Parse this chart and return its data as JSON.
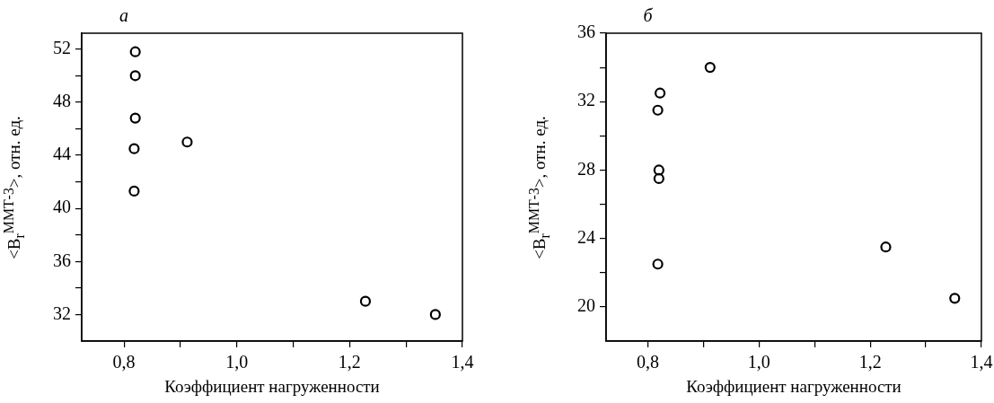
{
  "chart_data": [
    {
      "type": "scatter",
      "title": "а",
      "xlabel": "Коэффициент нагруженности",
      "ylabel": "<B$_{r}$$^{ММТ-3}$>, отн. ед.",
      "series": [
        {
          "color": "#000000",
          "x": [
            0.82,
            0.82,
            0.82,
            0.818,
            0.818,
            0.912,
            1.228,
            1.352
          ],
          "values": [
            51.8,
            50,
            46.8,
            44.5,
            41.3,
            45,
            33,
            32
          ]
        }
      ],
      "xlim": [
        0.725,
        1.4
      ],
      "ylim": [
        30,
        53.2
      ],
      "xticks": [
        {
          "value": 0.8,
          "label": "0,8"
        },
        {
          "value": 0.9,
          "label": null
        },
        {
          "value": 1.0,
          "label": "1,0"
        },
        {
          "value": 1.1,
          "label": null
        },
        {
          "value": 1.2,
          "label": "1,2"
        },
        {
          "value": 1.3,
          "label": null
        },
        {
          "value": 1.4,
          "label": "1,4"
        }
      ],
      "yticks": [
        32,
        {
          "value": 34,
          "label": null
        },
        36,
        {
          "value": 38,
          "label": null
        },
        40,
        {
          "value": 42,
          "label": null
        },
        44,
        {
          "value": 46,
          "label": null
        },
        48,
        {
          "value": 50,
          "label": null
        },
        52
      ],
      "grid": false,
      "legend": false,
      "marker": "circle"
    },
    {
      "type": "scatter",
      "title": "б",
      "xlabel": "Коэффициент нагруженности",
      "ylabel": "<B$_{r}$$^{ММТ-3}$>, отн. ед.",
      "series": [
        {
          "color": "#000000",
          "x": [
            0.818,
            0.82,
            0.82,
            0.818,
            0.822,
            0.912,
            1.228,
            1.352
          ],
          "values": [
            22.5,
            27.5,
            28,
            31.5,
            32.5,
            34,
            23.5,
            20.5
          ]
        }
      ],
      "xlim": [
        0.725,
        1.4
      ],
      "ylim": [
        18,
        36
      ],
      "xticks": [
        {
          "value": 0.8,
          "label": "0,8"
        },
        {
          "value": 0.9,
          "label": null
        },
        {
          "value": 1.0,
          "label": "1,0"
        },
        {
          "value": 1.1,
          "label": null
        },
        {
          "value": 1.2,
          "label": "1,2"
        },
        {
          "value": 1.3,
          "label": null
        },
        {
          "value": 1.4,
          "label": "1,4"
        }
      ],
      "yticks": [
        20,
        {
          "value": 22,
          "label": null
        },
        24,
        {
          "value": 26,
          "label": null
        },
        28,
        {
          "value": 30,
          "label": null
        },
        32,
        {
          "value": 34,
          "label": null
        },
        36
      ],
      "grid": false,
      "legend": false,
      "marker": "circle"
    }
  ]
}
